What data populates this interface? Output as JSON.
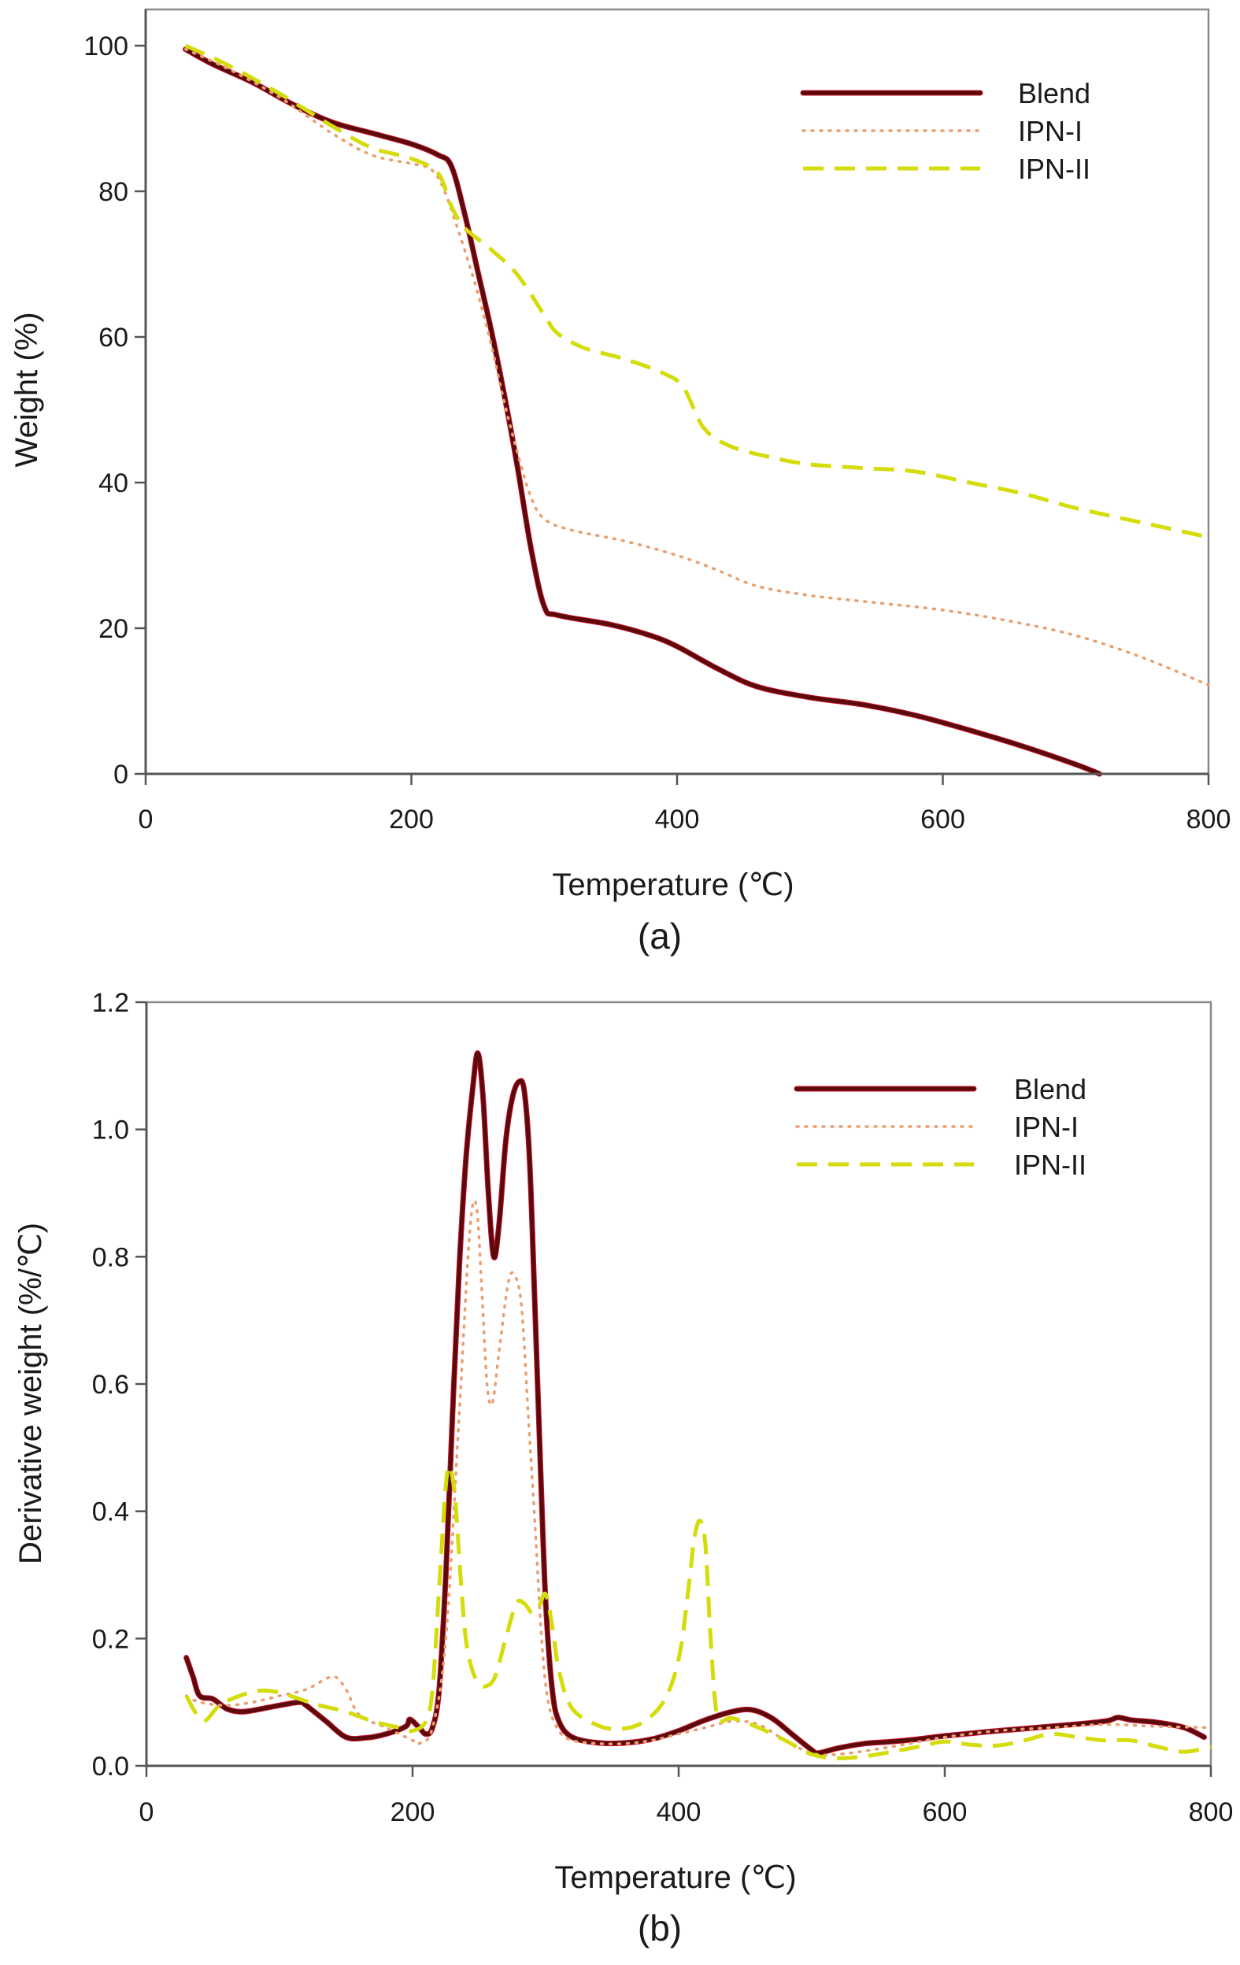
{
  "chart_data": [
    {
      "id": "a",
      "type": "line",
      "caption": "(a)",
      "title": "",
      "xlabel": "Temperature (℃)",
      "ylabel": "Weight (%)",
      "xlim": [
        0,
        800
      ],
      "ylim": [
        0,
        100
      ],
      "xticks": [
        0,
        200,
        400,
        600,
        800
      ],
      "yticks": [
        0,
        20,
        40,
        60,
        80,
        100
      ],
      "xtick_labels": [
        "0",
        "200",
        "400",
        "600",
        "800"
      ],
      "ytick_labels": [
        "0",
        "20",
        "40",
        "60",
        "80",
        "100"
      ],
      "grid": false,
      "legend_position": "top-right",
      "series": [
        {
          "name": "Blend",
          "style": "solid",
          "color": "#5a0a0a",
          "x": [
            30,
            50,
            80,
            110,
            140,
            170,
            200,
            220,
            230,
            240,
            250,
            260,
            270,
            280,
            290,
            300,
            310,
            350,
            380,
            400,
            430,
            460,
            500,
            540,
            580,
            620,
            660,
            700,
            718
          ],
          "y": [
            99.5,
            97.5,
            95,
            92,
            89.5,
            88,
            86.5,
            85,
            83.5,
            77,
            69,
            61,
            52,
            42,
            31,
            23,
            21.8,
            20.5,
            19,
            17.5,
            14.5,
            12,
            10.5,
            9.5,
            8,
            6,
            3.8,
            1.3,
            0
          ]
        },
        {
          "name": "IPN-I",
          "style": "dotted",
          "color": "#e8a070",
          "x": [
            30,
            60,
            100,
            140,
            170,
            200,
            215,
            225,
            240,
            250,
            260,
            270,
            280,
            290,
            300,
            320,
            360,
            400,
            430,
            460,
            500,
            550,
            600,
            650,
            700,
            750,
            800
          ],
          "y": [
            99.5,
            97,
            93,
            88,
            85,
            83.8,
            83,
            80,
            72,
            66,
            59,
            51,
            44,
            38,
            35,
            33.5,
            32,
            30,
            28,
            25.8,
            24.5,
            23.5,
            22.5,
            21,
            19,
            16,
            12.2
          ]
        },
        {
          "name": "IPN-II",
          "style": "dashed",
          "color": "#d4dc0a",
          "x": [
            30,
            60,
            100,
            140,
            170,
            200,
            220,
            230,
            240,
            260,
            280,
            300,
            310,
            330,
            360,
            390,
            405,
            420,
            440,
            470,
            500,
            540,
            580,
            620,
            660,
            700,
            750,
            800
          ],
          "y": [
            100,
            97.5,
            93.5,
            89,
            86,
            84.5,
            82.5,
            78,
            75,
            72,
            68.5,
            63,
            60.5,
            58.5,
            57,
            55,
            53,
            47.5,
            45,
            43.5,
            42.5,
            42,
            41.5,
            40,
            38.5,
            36.5,
            34.5,
            32.5
          ]
        }
      ]
    },
    {
      "id": "b",
      "type": "line",
      "caption": "(b)",
      "title": "",
      "xlabel": "Temperature (℃)",
      "ylabel": "Derivative weight (%/℃)",
      "xlim": [
        0,
        800
      ],
      "ylim": [
        0,
        1.2
      ],
      "xticks": [
        0,
        200,
        400,
        600,
        800
      ],
      "yticks": [
        0,
        0.2,
        0.4,
        0.6,
        0.8,
        1.0,
        1.2
      ],
      "xtick_labels": [
        "0",
        "200",
        "400",
        "600",
        "800"
      ],
      "ytick_labels": [
        "0.0",
        "0.2",
        "0.4",
        "0.6",
        "0.8",
        "1.0",
        "1.2"
      ],
      "grid": false,
      "legend_position": "top-right",
      "series": [
        {
          "name": "Blend",
          "style": "solid",
          "color": "#5a0a0a",
          "x": [
            30,
            35,
            40,
            50,
            60,
            70,
            80,
            100,
            115,
            120,
            135,
            150,
            165,
            180,
            195,
            198,
            205,
            210,
            215,
            220,
            225,
            230,
            235,
            240,
            245,
            249,
            253,
            257,
            261,
            265,
            270,
            275,
            280,
            284,
            288,
            292,
            296,
            300,
            305,
            310,
            320,
            340,
            360,
            380,
            400,
            420,
            440,
            455,
            470,
            485,
            500,
            505,
            520,
            540,
            560,
            580,
            600,
            640,
            680,
            720,
            730,
            740,
            760,
            780,
            795
          ],
          "y": [
            0.17,
            0.14,
            0.11,
            0.105,
            0.09,
            0.085,
            0.087,
            0.095,
            0.1,
            0.095,
            0.07,
            0.045,
            0.044,
            0.05,
            0.062,
            0.073,
            0.06,
            0.05,
            0.06,
            0.12,
            0.3,
            0.55,
            0.78,
            0.95,
            1.06,
            1.12,
            1.05,
            0.9,
            0.8,
            0.85,
            0.98,
            1.05,
            1.075,
            1.06,
            0.95,
            0.72,
            0.48,
            0.26,
            0.12,
            0.07,
            0.045,
            0.036,
            0.036,
            0.042,
            0.055,
            0.072,
            0.085,
            0.088,
            0.075,
            0.05,
            0.025,
            0.02,
            0.028,
            0.035,
            0.038,
            0.042,
            0.047,
            0.055,
            0.062,
            0.07,
            0.076,
            0.072,
            0.068,
            0.06,
            0.045
          ]
        },
        {
          "name": "IPN-I",
          "style": "dotted",
          "color": "#e8a070",
          "x": [
            30,
            40,
            60,
            80,
            100,
            120,
            140,
            150,
            160,
            180,
            200,
            205,
            215,
            225,
            235,
            243,
            248,
            252,
            256,
            260,
            265,
            272,
            277,
            282,
            287,
            292,
            297,
            302,
            310,
            320,
            340,
            360,
            380,
            400,
            420,
            440,
            460,
            480,
            500,
            520,
            560,
            600,
            640,
            680,
            720,
            760,
            800
          ],
          "y": [
            0.11,
            0.1,
            0.095,
            0.1,
            0.11,
            0.12,
            0.14,
            0.12,
            0.08,
            0.06,
            0.04,
            0.035,
            0.06,
            0.2,
            0.55,
            0.84,
            0.88,
            0.75,
            0.6,
            0.57,
            0.65,
            0.76,
            0.77,
            0.72,
            0.55,
            0.38,
            0.2,
            0.1,
            0.055,
            0.04,
            0.035,
            0.035,
            0.04,
            0.05,
            0.06,
            0.07,
            0.065,
            0.04,
            0.02,
            0.018,
            0.03,
            0.045,
            0.055,
            0.06,
            0.065,
            0.062,
            0.06
          ]
        },
        {
          "name": "IPN-II",
          "style": "dashed",
          "color": "#d4dc0a",
          "x": [
            30,
            35,
            40,
            45,
            55,
            70,
            85,
            100,
            115,
            130,
            150,
            170,
            190,
            200,
            210,
            215,
            220,
            225,
            228,
            232,
            236,
            240,
            245,
            250,
            255,
            262,
            270,
            278,
            284,
            290,
            295,
            300,
            305,
            310,
            320,
            340,
            355,
            370,
            385,
            395,
            402,
            408,
            412,
            416,
            420,
            424,
            428,
            432,
            440,
            460,
            480,
            500,
            520,
            540,
            560,
            580,
            600,
            620,
            640,
            660,
            680,
            700,
            720,
            740,
            760,
            780,
            800
          ],
          "y": [
            0.11,
            0.09,
            0.075,
            0.072,
            0.095,
            0.11,
            0.118,
            0.115,
            0.105,
            0.095,
            0.085,
            0.07,
            0.06,
            0.055,
            0.07,
            0.12,
            0.28,
            0.44,
            0.47,
            0.42,
            0.3,
            0.2,
            0.15,
            0.13,
            0.125,
            0.14,
            0.2,
            0.255,
            0.255,
            0.24,
            0.25,
            0.27,
            0.22,
            0.15,
            0.09,
            0.063,
            0.058,
            0.065,
            0.09,
            0.13,
            0.19,
            0.29,
            0.36,
            0.385,
            0.35,
            0.2,
            0.09,
            0.07,
            0.075,
            0.06,
            0.04,
            0.018,
            0.012,
            0.015,
            0.022,
            0.03,
            0.038,
            0.033,
            0.032,
            0.04,
            0.05,
            0.045,
            0.04,
            0.04,
            0.03,
            0.022,
            0.03
          ]
        }
      ]
    }
  ]
}
